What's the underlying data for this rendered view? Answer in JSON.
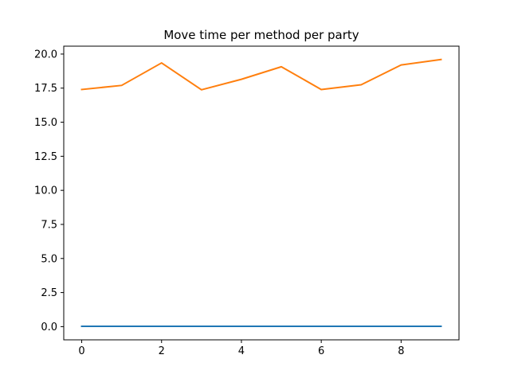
{
  "chart_data": {
    "type": "line",
    "title": "Move time per method per party",
    "xlabel": "",
    "ylabel": "",
    "x": [
      0,
      1,
      2,
      3,
      4,
      5,
      6,
      7,
      8,
      9
    ],
    "xlim": [
      -0.45,
      9.45
    ],
    "ylim": [
      -0.97,
      20.58
    ],
    "xticks": [
      0,
      2,
      4,
      6,
      8
    ],
    "xtick_labels": [
      "0",
      "2",
      "4",
      "6",
      "8"
    ],
    "yticks": [
      0,
      2.5,
      5,
      7.5,
      10,
      12.5,
      15,
      17.5,
      20
    ],
    "ytick_labels": [
      "0.0",
      "2.5",
      "5.0",
      "7.5",
      "10.0",
      "12.5",
      "15.0",
      "17.5",
      "20.0"
    ],
    "grid": false,
    "series": [
      {
        "color": "#1f77b4",
        "values": [
          0.02,
          0.02,
          0.02,
          0.02,
          0.02,
          0.02,
          0.02,
          0.02,
          0.02,
          0.02
        ]
      },
      {
        "color": "#ff7f0e",
        "values": [
          17.4,
          17.7,
          19.35,
          17.38,
          18.15,
          19.07,
          17.4,
          17.75,
          19.2,
          19.6
        ]
      }
    ]
  }
}
